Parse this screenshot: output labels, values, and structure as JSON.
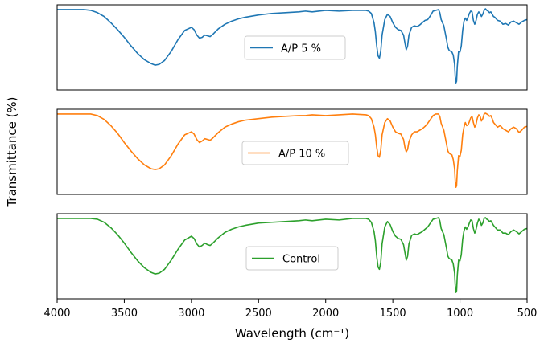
{
  "chart_data": {
    "type": "line",
    "title": "",
    "xlabel": "Wavelength (cm⁻¹)",
    "ylabel": "Transmittance (%)",
    "xlim": [
      4000,
      500
    ],
    "x_ticks": [
      4000,
      3500,
      3000,
      2500,
      2000,
      1500,
      1000,
      500
    ],
    "x_tick_labels": [
      "4000",
      "3500",
      "3000",
      "2500",
      "2000",
      "1500",
      "1000",
      "500"
    ],
    "ylim": [
      0,
      1
    ],
    "y_ticks_visible": false,
    "grid": false,
    "panels": [
      {
        "name": "A/P 5 %",
        "legend_label": "A/P 5 %",
        "color": "#1f77b4",
        "x": [
          4000,
          3800,
          3750,
          3700,
          3650,
          3600,
          3550,
          3500,
          3450,
          3400,
          3350,
          3300,
          3270,
          3240,
          3200,
          3150,
          3100,
          3050,
          3000,
          2980,
          2960,
          2940,
          2920,
          2900,
          2880,
          2860,
          2840,
          2800,
          2750,
          2700,
          2650,
          2600,
          2500,
          2400,
          2300,
          2200,
          2150,
          2100,
          2000,
          1900,
          1800,
          1700,
          1680,
          1660,
          1640,
          1630,
          1620,
          1610,
          1600,
          1590,
          1580,
          1560,
          1540,
          1520,
          1500,
          1480,
          1460,
          1440,
          1420,
          1410,
          1400,
          1390,
          1380,
          1360,
          1340,
          1320,
          1300,
          1280,
          1260,
          1240,
          1220,
          1200,
          1180,
          1160,
          1150,
          1140,
          1120,
          1100,
          1090,
          1080,
          1070,
          1060,
          1050,
          1040,
          1035,
          1030,
          1025,
          1020,
          1010,
          1000,
          990,
          980,
          970,
          960,
          950,
          940,
          930,
          920,
          910,
          900,
          890,
          880,
          870,
          860,
          850,
          840,
          830,
          820,
          810,
          800,
          790,
          780,
          770,
          760,
          750,
          740,
          720,
          700,
          680,
          660,
          640,
          620,
          600,
          580,
          560,
          540,
          520,
          500
        ],
        "y": [
          0.99,
          0.99,
          0.98,
          0.95,
          0.9,
          0.82,
          0.73,
          0.63,
          0.52,
          0.42,
          0.34,
          0.29,
          0.27,
          0.28,
          0.33,
          0.45,
          0.6,
          0.72,
          0.76,
          0.73,
          0.66,
          0.62,
          0.63,
          0.66,
          0.65,
          0.64,
          0.67,
          0.74,
          0.8,
          0.84,
          0.87,
          0.89,
          0.92,
          0.94,
          0.95,
          0.96,
          0.97,
          0.96,
          0.98,
          0.97,
          0.98,
          0.98,
          0.97,
          0.94,
          0.82,
          0.7,
          0.52,
          0.39,
          0.36,
          0.45,
          0.66,
          0.86,
          0.93,
          0.9,
          0.82,
          0.76,
          0.73,
          0.72,
          0.66,
          0.56,
          0.47,
          0.52,
          0.66,
          0.76,
          0.78,
          0.77,
          0.79,
          0.82,
          0.85,
          0.86,
          0.91,
          0.97,
          0.98,
          0.99,
          0.95,
          0.86,
          0.78,
          0.6,
          0.5,
          0.46,
          0.45,
          0.44,
          0.4,
          0.28,
          0.12,
          0.04,
          0.06,
          0.25,
          0.45,
          0.44,
          0.52,
          0.72,
          0.84,
          0.88,
          0.85,
          0.89,
          0.94,
          0.97,
          0.96,
          0.85,
          0.8,
          0.85,
          0.93,
          0.96,
          0.94,
          0.9,
          0.93,
          0.98,
          1.0,
          0.98,
          0.97,
          0.95,
          0.96,
          0.93,
          0.9,
          0.89,
          0.85,
          0.84,
          0.8,
          0.81,
          0.79,
          0.83,
          0.84,
          0.82,
          0.8,
          0.83,
          0.85,
          0.86
        ]
      },
      {
        "name": "A/P 10 %",
        "legend_label": "A/P 10 %",
        "color": "#ff7f0e",
        "x": [
          4000,
          3800,
          3750,
          3700,
          3650,
          3600,
          3550,
          3500,
          3450,
          3400,
          3350,
          3300,
          3270,
          3240,
          3200,
          3150,
          3100,
          3050,
          3000,
          2980,
          2960,
          2940,
          2920,
          2900,
          2880,
          2860,
          2840,
          2800,
          2750,
          2700,
          2650,
          2600,
          2500,
          2400,
          2300,
          2200,
          2150,
          2100,
          2000,
          1900,
          1800,
          1700,
          1680,
          1660,
          1640,
          1630,
          1620,
          1610,
          1600,
          1590,
          1580,
          1560,
          1540,
          1520,
          1500,
          1480,
          1460,
          1440,
          1420,
          1410,
          1400,
          1390,
          1380,
          1360,
          1340,
          1320,
          1300,
          1280,
          1260,
          1240,
          1220,
          1200,
          1180,
          1160,
          1150,
          1140,
          1120,
          1100,
          1090,
          1080,
          1070,
          1060,
          1050,
          1040,
          1035,
          1030,
          1025,
          1020,
          1010,
          1000,
          990,
          980,
          970,
          960,
          950,
          940,
          930,
          920,
          910,
          900,
          890,
          880,
          870,
          860,
          850,
          840,
          830,
          820,
          810,
          800,
          790,
          780,
          770,
          760,
          750,
          740,
          720,
          700,
          680,
          660,
          640,
          620,
          600,
          580,
          560,
          540,
          520,
          500
        ],
        "y": [
          0.99,
          0.99,
          0.99,
          0.97,
          0.92,
          0.84,
          0.74,
          0.62,
          0.51,
          0.41,
          0.33,
          0.28,
          0.27,
          0.28,
          0.33,
          0.45,
          0.6,
          0.72,
          0.76,
          0.73,
          0.66,
          0.62,
          0.64,
          0.67,
          0.66,
          0.65,
          0.68,
          0.75,
          0.82,
          0.86,
          0.89,
          0.91,
          0.93,
          0.95,
          0.96,
          0.97,
          0.97,
          0.98,
          0.97,
          0.98,
          0.99,
          0.98,
          0.97,
          0.93,
          0.82,
          0.72,
          0.56,
          0.45,
          0.43,
          0.52,
          0.72,
          0.88,
          0.93,
          0.9,
          0.82,
          0.76,
          0.74,
          0.73,
          0.66,
          0.56,
          0.5,
          0.53,
          0.63,
          0.72,
          0.76,
          0.76,
          0.78,
          0.8,
          0.83,
          0.87,
          0.92,
          0.97,
          0.99,
          0.99,
          0.96,
          0.87,
          0.78,
          0.6,
          0.51,
          0.48,
          0.47,
          0.46,
          0.4,
          0.28,
          0.12,
          0.04,
          0.06,
          0.25,
          0.45,
          0.44,
          0.52,
          0.72,
          0.82,
          0.88,
          0.84,
          0.85,
          0.89,
          0.94,
          0.96,
          0.88,
          0.82,
          0.86,
          0.94,
          0.98,
          0.96,
          0.9,
          0.93,
          0.99,
          1.0,
          0.99,
          0.98,
          0.96,
          0.97,
          0.93,
          0.88,
          0.86,
          0.82,
          0.84,
          0.8,
          0.78,
          0.76,
          0.8,
          0.82,
          0.8,
          0.75,
          0.78,
          0.82,
          0.83
        ]
      },
      {
        "name": "Control",
        "legend_label": "Control",
        "color": "#2ca02c",
        "x": [
          4000,
          3800,
          3750,
          3700,
          3650,
          3600,
          3550,
          3500,
          3450,
          3400,
          3350,
          3300,
          3270,
          3240,
          3200,
          3150,
          3100,
          3050,
          3000,
          2980,
          2960,
          2940,
          2920,
          2900,
          2880,
          2860,
          2840,
          2800,
          2750,
          2700,
          2650,
          2600,
          2500,
          2400,
          2300,
          2200,
          2150,
          2100,
          2000,
          1900,
          1800,
          1700,
          1680,
          1660,
          1640,
          1630,
          1620,
          1610,
          1600,
          1590,
          1580,
          1560,
          1540,
          1520,
          1500,
          1480,
          1460,
          1440,
          1420,
          1410,
          1400,
          1390,
          1380,
          1360,
          1340,
          1320,
          1300,
          1280,
          1260,
          1240,
          1220,
          1200,
          1180,
          1160,
          1150,
          1140,
          1120,
          1100,
          1090,
          1080,
          1070,
          1060,
          1050,
          1040,
          1035,
          1030,
          1025,
          1020,
          1010,
          1000,
          990,
          980,
          970,
          960,
          950,
          940,
          930,
          920,
          910,
          900,
          890,
          880,
          870,
          860,
          850,
          840,
          830,
          820,
          810,
          800,
          790,
          780,
          770,
          760,
          750,
          740,
          720,
          700,
          680,
          660,
          640,
          620,
          600,
          580,
          560,
          540,
          520,
          500
        ],
        "y": [
          0.99,
          0.99,
          0.99,
          0.98,
          0.94,
          0.87,
          0.78,
          0.67,
          0.55,
          0.44,
          0.35,
          0.29,
          0.27,
          0.28,
          0.33,
          0.45,
          0.59,
          0.71,
          0.76,
          0.73,
          0.66,
          0.62,
          0.64,
          0.67,
          0.65,
          0.64,
          0.67,
          0.74,
          0.81,
          0.85,
          0.88,
          0.9,
          0.93,
          0.94,
          0.95,
          0.96,
          0.97,
          0.96,
          0.98,
          0.97,
          0.99,
          0.99,
          0.98,
          0.94,
          0.82,
          0.7,
          0.5,
          0.36,
          0.33,
          0.42,
          0.66,
          0.88,
          0.95,
          0.91,
          0.82,
          0.76,
          0.73,
          0.72,
          0.65,
          0.55,
          0.45,
          0.5,
          0.66,
          0.77,
          0.79,
          0.78,
          0.8,
          0.82,
          0.85,
          0.88,
          0.93,
          0.98,
          0.99,
          1.0,
          0.96,
          0.86,
          0.78,
          0.6,
          0.5,
          0.47,
          0.46,
          0.45,
          0.4,
          0.28,
          0.12,
          0.03,
          0.05,
          0.25,
          0.45,
          0.44,
          0.52,
          0.72,
          0.83,
          0.88,
          0.85,
          0.88,
          0.93,
          0.97,
          0.96,
          0.86,
          0.8,
          0.85,
          0.93,
          0.98,
          0.96,
          0.9,
          0.93,
          0.99,
          1.0,
          0.98,
          0.97,
          0.95,
          0.96,
          0.93,
          0.9,
          0.88,
          0.84,
          0.84,
          0.8,
          0.8,
          0.78,
          0.82,
          0.84,
          0.82,
          0.79,
          0.82,
          0.85,
          0.86
        ]
      }
    ]
  }
}
